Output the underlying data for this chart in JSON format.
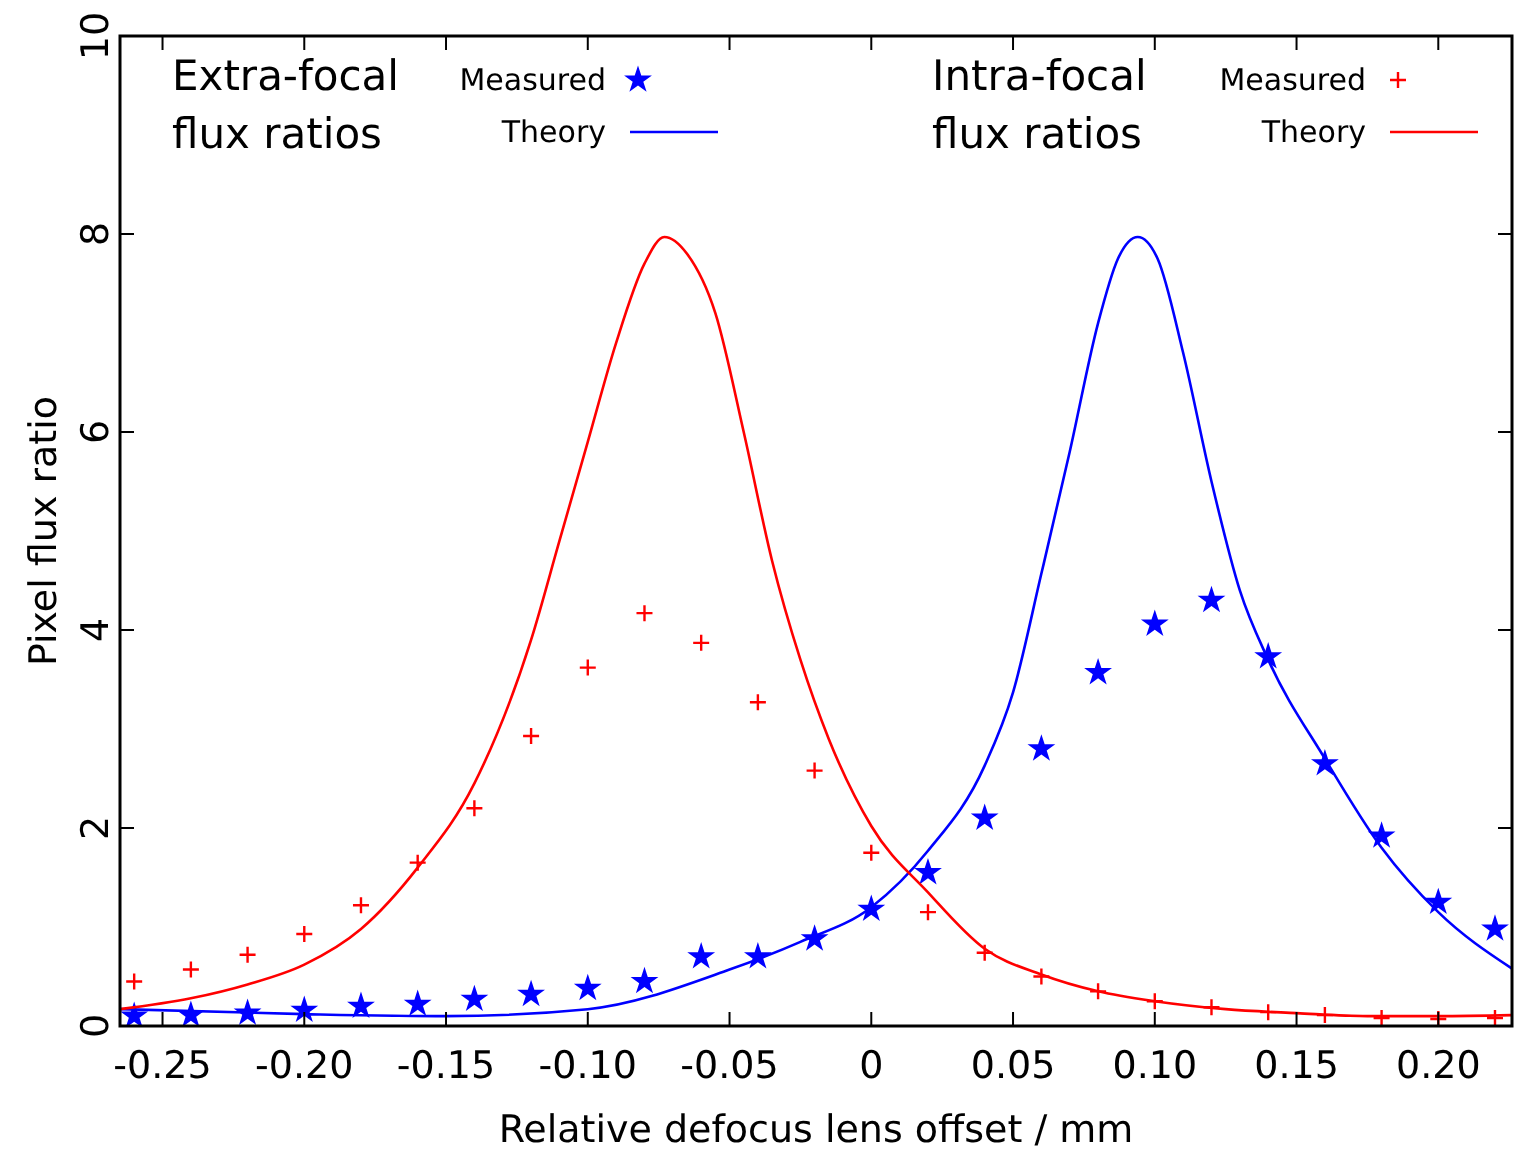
{
  "chart_data": {
    "type": "scatter",
    "xlabel": "Relative defocus lens offset / mm",
    "ylabel": "Pixel flux ratio",
    "xlim": [
      -0.265,
      0.226
    ],
    "ylim": [
      0,
      10
    ],
    "xticks": [
      -0.25,
      {
        "value": -0.2,
        "label": "-0.20"
      },
      -0.15,
      {
        "value": -0.1,
        "label": "-0.10"
      },
      -0.05,
      0,
      0.05,
      {
        "value": 0.1,
        "label": "0.10"
      },
      0.15,
      {
        "value": 0.2,
        "label": "0.20"
      }
    ],
    "yticks": [
      0,
      2,
      4,
      6,
      8,
      10
    ],
    "legend": "top",
    "grid": false,
    "annotations": [
      "Extra-focal flux ratios",
      "Intra-focal flux ratios"
    ],
    "series": [
      {
        "name": "Measured",
        "marker": "star",
        "color": "#0000ff",
        "x": [
          -0.26,
          -0.24,
          -0.22,
          -0.2,
          -0.18,
          -0.16,
          -0.14,
          -0.12,
          -0.1,
          -0.08,
          -0.06,
          -0.04,
          -0.02,
          0,
          0.02,
          0.04,
          0.06,
          0.08,
          0.1,
          0.12,
          0.14,
          0.16,
          0.18,
          0.2,
          0.22
        ],
        "values": [
          0.1,
          0.11,
          0.13,
          0.16,
          0.2,
          0.22,
          0.27,
          0.32,
          0.38,
          0.45,
          0.7,
          0.7,
          0.88,
          1.18,
          1.55,
          2.1,
          2.8,
          3.57,
          4.06,
          4.3,
          3.73,
          2.65,
          1.92,
          1.25,
          0.98
        ]
      },
      {
        "name": "Theory",
        "type": "line",
        "line_style": "solid",
        "color": "#0000ff",
        "x": [
          -0.265,
          -0.2,
          -0.15,
          -0.1,
          -0.05,
          -0.025,
          0,
          0.02,
          0.04,
          0.05,
          0.06,
          0.07,
          0.08,
          0.087,
          0.094,
          0.101,
          0.11,
          0.12,
          0.13,
          0.14,
          0.16,
          0.18,
          0.2,
          0.226
        ],
        "values": [
          0.17,
          0.12,
          0.1,
          0.17,
          0.57,
          0.85,
          1.2,
          1.77,
          2.63,
          3.37,
          4.57,
          5.8,
          7.1,
          7.75,
          7.97,
          7.75,
          6.8,
          5.5,
          4.4,
          3.7,
          2.7,
          1.8,
          1.15,
          0.58
        ]
      },
      {
        "name": "Measured",
        "marker": "cross",
        "color": "#ff0000",
        "x": [
          -0.26,
          -0.24,
          -0.22,
          -0.2,
          -0.18,
          -0.16,
          -0.14,
          -0.12,
          -0.1,
          -0.08,
          -0.06,
          -0.04,
          -0.02,
          0,
          0.02,
          0.04,
          0.06,
          0.08,
          0.1,
          0.12,
          0.14,
          0.16,
          0.18,
          0.2,
          0.22
        ],
        "values": [
          0.45,
          0.57,
          0.72,
          0.93,
          1.22,
          1.65,
          2.2,
          2.93,
          3.62,
          4.17,
          3.87,
          3.27,
          2.58,
          1.75,
          1.15,
          0.74,
          0.5,
          0.35,
          0.25,
          0.19,
          0.14,
          0.11,
          0.08,
          0.07,
          0.08
        ]
      },
      {
        "name": "Theory",
        "type": "line",
        "line_style": "solid",
        "color": "#ff0000",
        "x": [
          -0.265,
          -0.24,
          -0.22,
          -0.2,
          -0.18,
          -0.16,
          -0.14,
          -0.12,
          -0.11,
          -0.1,
          -0.09,
          -0.08,
          -0.073,
          -0.065,
          -0.055,
          -0.045,
          -0.035,
          -0.025,
          -0.015,
          0,
          0.02,
          0.04,
          0.06,
          0.08,
          0.1,
          0.125,
          0.15,
          0.175,
          0.2,
          0.226
        ],
        "values": [
          0.17,
          0.28,
          0.42,
          0.62,
          0.98,
          1.6,
          2.45,
          3.9,
          4.9,
          5.9,
          6.9,
          7.7,
          7.97,
          7.8,
          7.2,
          6.0,
          4.7,
          3.7,
          2.9,
          2.02,
          1.35,
          0.78,
          0.52,
          0.35,
          0.25,
          0.17,
          0.13,
          0.1,
          0.1,
          0.11
        ]
      }
    ]
  }
}
